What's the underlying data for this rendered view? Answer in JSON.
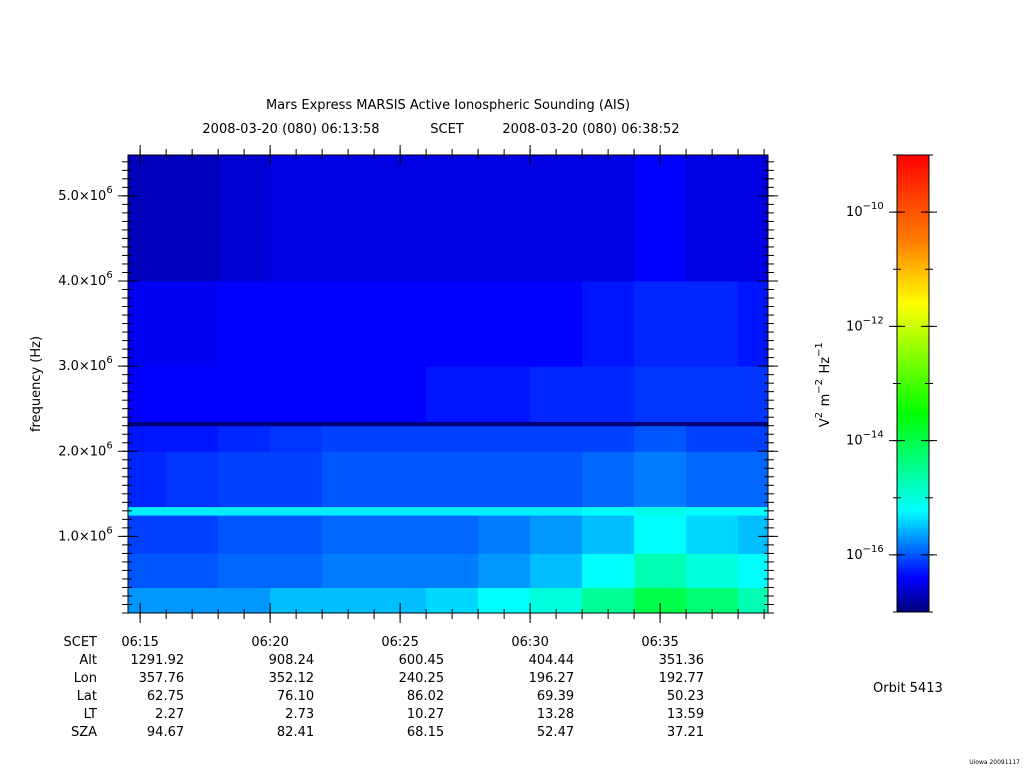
{
  "chart_data": {
    "type": "heatmap",
    "title": "Mars Express MARSIS Active Ionospheric Sounding (AIS)",
    "subtitle": {
      "start": "2008-03-20 (080) 06:13:58",
      "time_system": "SCET",
      "end": "2008-03-20 (080) 06:38:52"
    },
    "y_label": "frequency (Hz)",
    "colorbar_label": "V^2 m^−2 Hz^−1",
    "xlim": [
      "06:14:32",
      "06:39:09"
    ],
    "xticks": [
      "06:15",
      "06:20",
      "06:25",
      "06:30",
      "06:35"
    ],
    "ylim": [
      100000,
      5480000
    ],
    "yticks": [
      {
        "value": 1000000,
        "label": "1.0×10^6"
      },
      {
        "value": 2000000,
        "label": "2.0×10^6"
      },
      {
        "value": 3000000,
        "label": "3.0×10^6"
      },
      {
        "value": 4000000,
        "label": "4.0×10^6"
      },
      {
        "value": 5000000,
        "label": "5.0×10^6"
      }
    ],
    "x_bins": [
      "06:14:32",
      "06:16:00",
      "06:18:00",
      "06:20:00",
      "06:22:00",
      "06:24:00",
      "06:26:00",
      "06:28:00",
      "06:30:00",
      "06:32:00",
      "06:34:00",
      "06:36:00",
      "06:38:00",
      "06:39:09"
    ],
    "y_bins": [
      100000,
      400000,
      800000,
      1250000,
      1350000,
      2000000,
      2300000,
      2350000,
      3000000,
      4000000,
      5480000
    ],
    "z": [
      [
        2e-16,
        2e-16,
        2e-16,
        3e-16,
        3e-16,
        3e-16,
        4e-16,
        6e-16,
        1e-15,
        3e-15,
        1e-14,
        5e-15,
        2e-15
      ],
      [
        1e-16,
        1e-16,
        1.2e-16,
        1.2e-16,
        1.5e-16,
        1.5e-16,
        1.5e-16,
        2e-16,
        3e-16,
        6e-16,
        2e-15,
        1e-15,
        6e-16
      ],
      [
        8e-17,
        8e-17,
        1e-16,
        1e-16,
        1.2e-16,
        1.2e-16,
        1.2e-16,
        1.5e-16,
        2e-16,
        3e-16,
        6e-16,
        4e-16,
        3e-16
      ],
      [
        5e-16,
        5e-16,
        5e-16,
        5e-16,
        5e-16,
        5e-16,
        5e-16,
        5e-16,
        5e-16,
        6e-16,
        8e-16,
        6e-16,
        6e-16
      ],
      [
        6e-17,
        7e-17,
        8e-17,
        8e-17,
        1e-16,
        1e-16,
        1e-16,
        1e-16,
        1e-16,
        1.2e-16,
        1.5e-16,
        1.2e-16,
        1.2e-16
      ],
      [
        5e-17,
        5e-17,
        6e-17,
        7e-17,
        8e-17,
        8e-17,
        8e-17,
        8e-17,
        8e-17,
        8e-17,
        1e-16,
        8e-17,
        8e-17
      ],
      [
        1e-17,
        1e-17,
        1e-17,
        1e-17,
        1e-17,
        1e-17,
        1e-17,
        1e-17,
        1e-17,
        1e-17,
        1e-17,
        1e-17,
        1e-17
      ],
      [
        4e-17,
        4e-17,
        4e-17,
        4e-17,
        4e-17,
        4e-17,
        5e-17,
        5e-17,
        6e-17,
        6e-17,
        7e-17,
        7e-17,
        7e-17
      ],
      [
        3.5e-17,
        3.5e-17,
        4e-17,
        4e-17,
        4e-17,
        4e-17,
        4e-17,
        4e-17,
        4e-17,
        5e-17,
        6e-17,
        6e-17,
        5e-17
      ],
      [
        2e-17,
        2e-17,
        2.5e-17,
        3e-17,
        3e-17,
        3e-17,
        3e-17,
        3e-17,
        3e-17,
        3e-17,
        4e-17,
        3e-17,
        3e-17
      ]
    ],
    "log_color": true,
    "clim": [
      1e-17,
      1e-09
    ],
    "cticks": [
      {
        "value": 1e-16,
        "label": "10^−16"
      },
      {
        "value": 1e-14,
        "label": "10^−14"
      },
      {
        "value": 1e-12,
        "label": "10^−12"
      },
      {
        "value": 1e-10,
        "label": "10^−10"
      }
    ],
    "colormap": [
      {
        "value": 1e-17,
        "color": "#00007a"
      },
      {
        "value": 4e-17,
        "color": "#0000ff"
      },
      {
        "value": 6e-16,
        "color": "#00ffff"
      },
      {
        "value": 3e-14,
        "color": "#00ff00"
      },
      {
        "value": 2.5e-12,
        "color": "#ffff00"
      },
      {
        "value": 3e-11,
        "color": "#ff8000"
      },
      {
        "value": 1e-09,
        "color": "#ff0000"
      }
    ]
  },
  "ephemeris": {
    "time_label": "SCET",
    "rows": [
      {
        "label": "Alt",
        "values": [
          "1291.92",
          "908.24",
          "600.45",
          "404.44",
          "351.36"
        ]
      },
      {
        "label": "Lon",
        "values": [
          "357.76",
          "352.12",
          "240.25",
          "196.27",
          "192.77"
        ]
      },
      {
        "label": "Lat",
        "values": [
          "62.75",
          "76.10",
          "86.02",
          "69.39",
          "50.23"
        ]
      },
      {
        "label": "LT",
        "values": [
          "2.27",
          "2.73",
          "10.27",
          "13.28",
          "13.59"
        ]
      },
      {
        "label": "SZA",
        "values": [
          "94.67",
          "82.41",
          "68.15",
          "52.47",
          "37.21"
        ]
      }
    ]
  },
  "orbit": "Orbit 5413",
  "footer": "Uiowa 20091117"
}
